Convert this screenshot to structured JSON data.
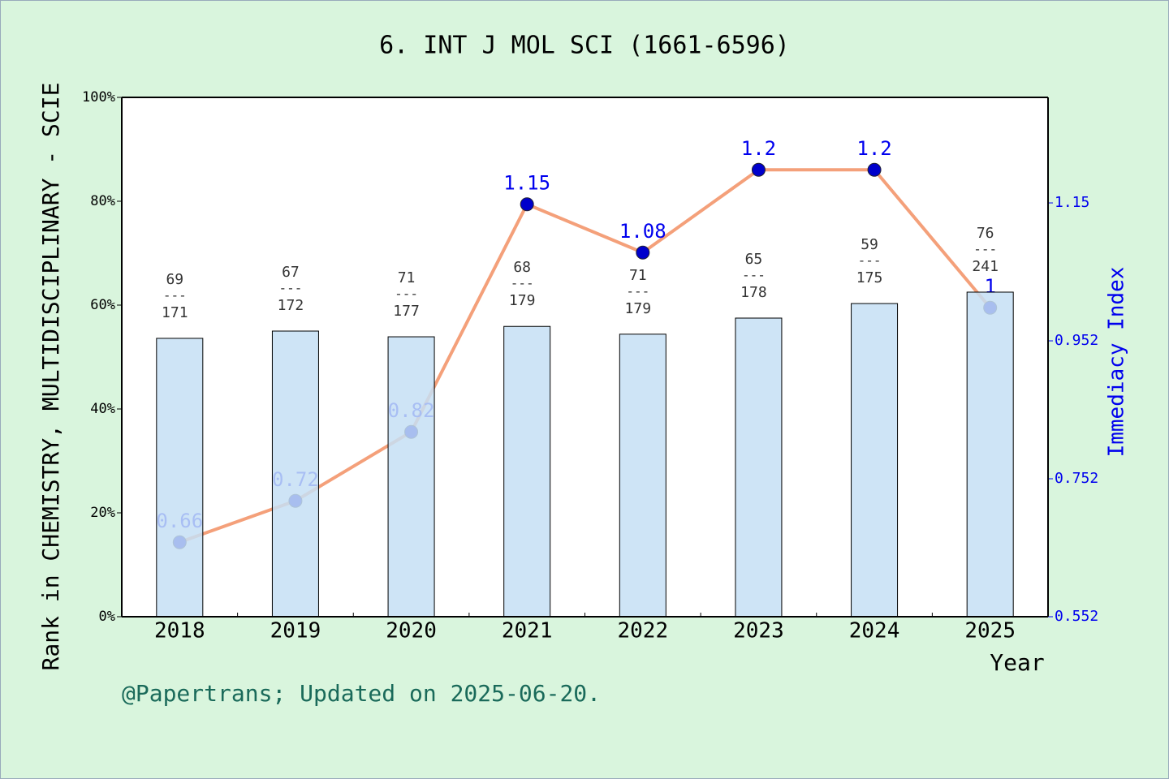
{
  "chart_data": {
    "type": "bar",
    "title": "6. INT J MOL SCI (1661-6596)",
    "xlabel": "Year",
    "ylabel": "Rank in CHEMISTRY, MULTIDISCIPLINARY - SCIE",
    "y2label": "Immediacy Index",
    "footer": "@Papertrans; Updated on 2025-06-20.",
    "categories": [
      "2018",
      "2019",
      "2020",
      "2021",
      "2022",
      "2023",
      "2024",
      "2025"
    ],
    "series": [
      {
        "type": "bar",
        "color": "#c5dff5",
        "values": [
          53.6,
          55,
          53.9,
          55.9,
          54.4,
          57.5,
          60.3,
          62.5
        ]
      },
      {
        "type": "line",
        "axis": "y2",
        "color": "#f4a07a",
        "marker_color": "#0000cc",
        "values": [
          0.66,
          0.72,
          0.82,
          1.15,
          1.08,
          1.2,
          1.2,
          1
        ]
      }
    ],
    "rank_labels": {
      "ranks": [
        69,
        67,
        71,
        68,
        71,
        65,
        59,
        76
      ],
      "totals": [
        171,
        172,
        177,
        179,
        179,
        178,
        175,
        241
      ],
      "separator": "---"
    },
    "ylim": [
      0,
      100
    ],
    "yticks": [
      {
        "value": 0,
        "label": "0%"
      },
      {
        "value": 20,
        "label": "20%"
      },
      {
        "value": 40,
        "label": "40%"
      },
      {
        "value": 60,
        "label": "60%"
      },
      {
        "value": 80,
        "label": "80%"
      },
      {
        "value": 100,
        "label": "100%"
      }
    ],
    "y2lim": [
      0.552,
      1.305
    ],
    "y2ticks": [
      0.552,
      0.752,
      0.952,
      {
        "value": 1.152,
        "label": "1.15"
      }
    ]
  }
}
